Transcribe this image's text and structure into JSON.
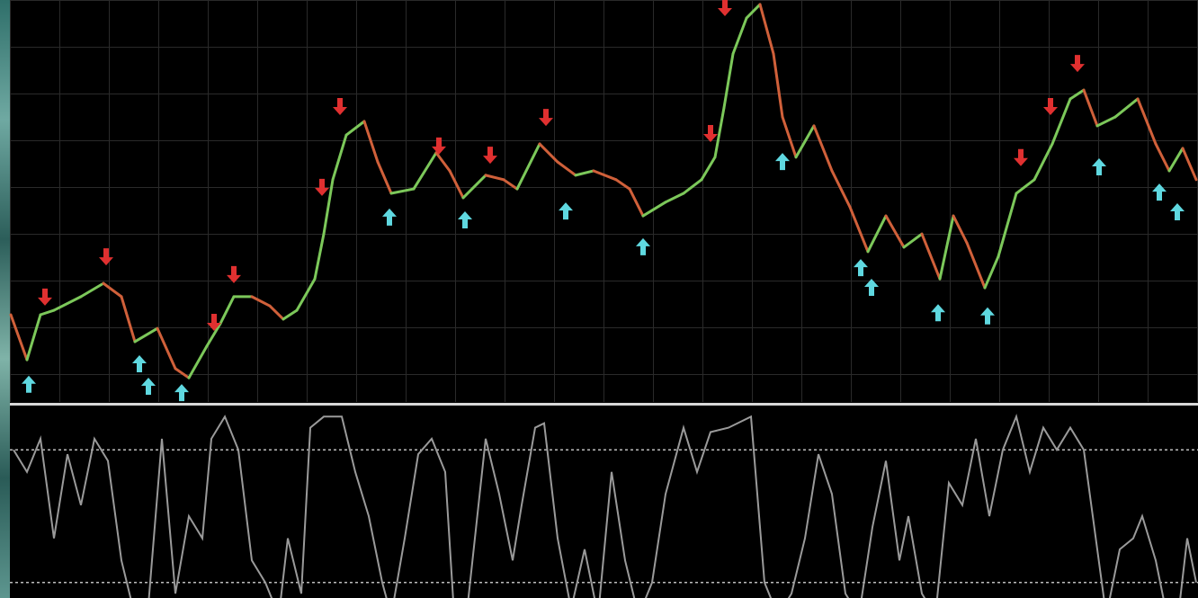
{
  "chart_data": [
    {
      "type": "line",
      "x": [
        12,
        30,
        45,
        60,
        90,
        115,
        135,
        150,
        175,
        195,
        210,
        230,
        245,
        260,
        280,
        300,
        315,
        330,
        350,
        360,
        370,
        385,
        405,
        420,
        435,
        460,
        485,
        500,
        515,
        540,
        560,
        575,
        600,
        620,
        640,
        660,
        685,
        700,
        715,
        740,
        760,
        780,
        795,
        805,
        815,
        830,
        845,
        860,
        870,
        885,
        905,
        925,
        945,
        965,
        985,
        1005,
        1025,
        1045,
        1060,
        1075,
        1095,
        1110,
        1130,
        1150,
        1170,
        1190,
        1205,
        1220,
        1240,
        1265,
        1285,
        1300,
        1315,
        1330
      ],
      "values": [
        21.7,
        10.5,
        21.7,
        22.8,
        26.2,
        29.5,
        26.2,
        15.0,
        18.3,
        8.3,
        6.0,
        13.9,
        19.5,
        26.2,
        26.2,
        23.9,
        20.6,
        22.8,
        30.6,
        41.8,
        55.3,
        66.4,
        69.8,
        59.7,
        51.9,
        53.0,
        62.0,
        57.5,
        50.8,
        56.4,
        55.3,
        53.0,
        64.2,
        59.7,
        56.4,
        57.5,
        55.3,
        53.0,
        46.3,
        49.7,
        51.9,
        55.3,
        60.9,
        73.2,
        86.6,
        95.5,
        98.9,
        86.6,
        70.9,
        60.9,
        68.7,
        57.5,
        48.5,
        37.4,
        46.3,
        38.5,
        41.8,
        30.6,
        46.3,
        39.6,
        28.4,
        36.2,
        51.9,
        55.3,
        64.2,
        75.4,
        77.6,
        68.7,
        70.9,
        75.4,
        64.2,
        57.5,
        63.1,
        55.3
      ],
      "up_color": "#7cc85a",
      "down_color": "#d0603a",
      "xlim": [
        0,
        1332
      ],
      "ylim": [
        0,
        100
      ],
      "markers": [
        {
          "shape": "down",
          "color": "#e03030",
          "x": [
            50,
            118,
            238,
            260,
            358,
            378,
            488,
            545,
            607,
            790,
            806,
            1135,
            1168,
            1198
          ],
          "values": [
            26.2,
            36.2,
            19.9,
            31.8,
            53.5,
            73.6,
            63.8,
            61.5,
            70.9,
            66.9,
            98.2,
            60.9,
            73.6,
            84.3
          ]
        },
        {
          "shape": "up",
          "color": "#5fd8e0",
          "x": [
            32,
            155,
            165,
            202,
            433,
            517,
            629,
            715,
            870,
            957,
            969,
            1043,
            1098,
            1222,
            1289,
            1309
          ],
          "values": [
            4.3,
            9.4,
            3.8,
            2.2,
            45.9,
            45.2,
            47.4,
            38.5,
            59.7,
            33.3,
            28.4,
            22.1,
            21.3,
            58.4,
            52.1,
            47.2
          ]
        }
      ]
    },
    {
      "type": "line",
      "x": [
        15,
        30,
        45,
        60,
        75,
        90,
        105,
        120,
        135,
        150,
        165,
        180,
        195,
        210,
        225,
        235,
        250,
        265,
        280,
        295,
        310,
        320,
        335,
        345,
        360,
        380,
        395,
        410,
        425,
        435,
        450,
        465,
        480,
        495,
        505,
        520,
        540,
        555,
        570,
        580,
        595,
        605,
        620,
        635,
        650,
        665,
        680,
        695,
        710,
        725,
        740,
        760,
        775,
        790,
        810,
        835,
        850,
        865,
        880,
        895,
        910,
        925,
        940,
        955,
        970,
        985,
        1000,
        1010,
        1025,
        1040,
        1055,
        1070,
        1085,
        1100,
        1115,
        1130,
        1145,
        1160,
        1175,
        1190,
        1205,
        1215,
        1230,
        1245,
        1260,
        1270,
        1285,
        1295,
        1310,
        1320,
        1330
      ],
      "values": [
        80,
        70,
        85,
        40,
        78,
        55,
        85,
        75,
        30,
        5,
        10,
        85,
        15,
        50,
        40,
        85,
        95,
        80,
        30,
        20,
        5,
        40,
        15,
        90,
        95,
        95,
        70,
        50,
        20,
        5,
        40,
        78,
        85,
        70,
        5,
        10,
        85,
        60,
        30,
        55,
        90,
        92,
        40,
        8,
        35,
        5,
        70,
        30,
        5,
        20,
        60,
        90,
        70,
        88,
        90,
        95,
        20,
        5,
        15,
        40,
        78,
        60,
        15,
        5,
        45,
        75,
        30,
        50,
        15,
        5,
        65,
        55,
        85,
        50,
        80,
        95,
        70,
        90,
        80,
        90,
        80,
        50,
        5,
        35,
        40,
        50,
        30,
        10,
        5,
        40,
        20
      ],
      "color": "#9a9a9a",
      "xlim": [
        0,
        1332
      ],
      "ylim": [
        0,
        100
      ],
      "yticks": [
        20,
        80
      ],
      "grid": true
    }
  ]
}
